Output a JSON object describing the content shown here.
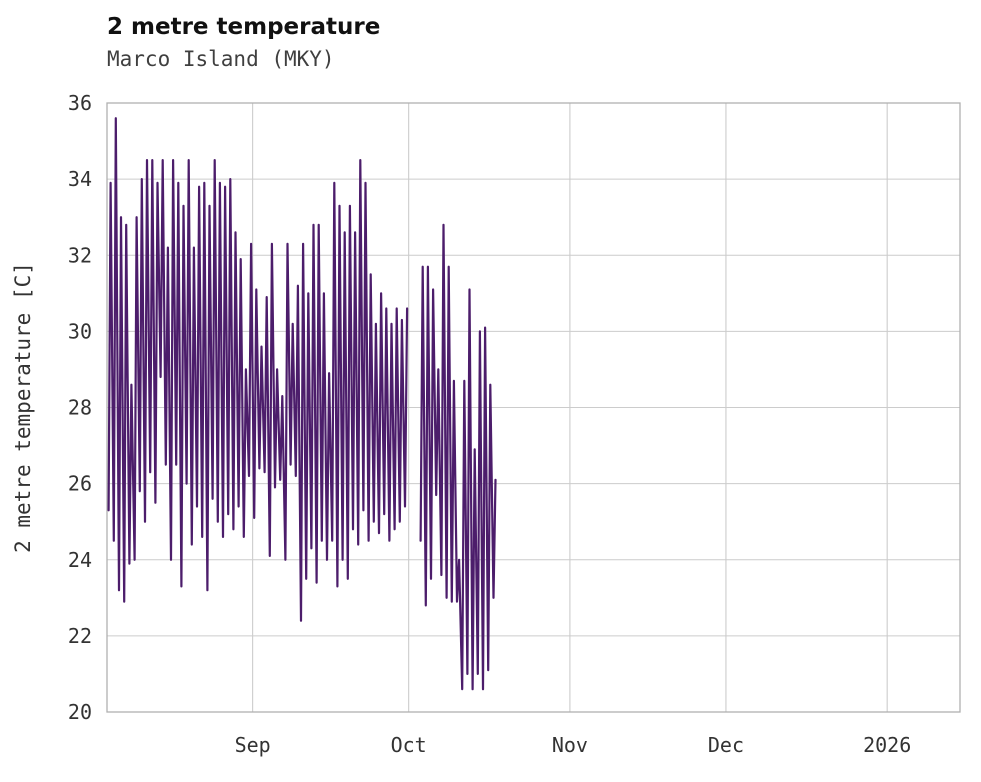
{
  "header": {
    "title": "2 metre temperature",
    "subtitle": "Marco Island (MKY)"
  },
  "chart_data": {
    "type": "line",
    "title": "2 metre temperature",
    "subtitle": "Marco Island (MKY)",
    "xlabel": "",
    "ylabel": "2 metre temperature [C]",
    "ylim": [
      20,
      36
    ],
    "yticks": [
      20,
      22,
      24,
      26,
      28,
      30,
      32,
      34,
      36
    ],
    "x_range_days": [
      0,
      164
    ],
    "x_epoch_note": "day 0 = approx Aug 4 2025 at left plot edge",
    "xticks": [
      {
        "day": 28,
        "label": "Sep"
      },
      {
        "day": 58,
        "label": "Oct"
      },
      {
        "day": 89,
        "label": "Nov"
      },
      {
        "day": 119,
        "label": "Dec"
      },
      {
        "day": 150,
        "label": "2026"
      }
    ],
    "grid": true,
    "legend": "none",
    "line_color": "#4c1d6b",
    "grid_color": "#cccccc",
    "frame_color": "#b0b0b0",
    "series": [
      {
        "name": "2 metre temperature",
        "sampling_note": "diurnal oscillation; one min and one max estimated per day",
        "segments": [
          {
            "start_day": 0,
            "max": [
              33.9,
              35.6,
              33.0,
              32.8,
              28.6,
              33.0,
              34.0,
              34.5,
              34.5,
              33.9,
              34.5,
              32.2,
              34.5,
              33.9,
              33.3,
              34.5,
              32.2,
              33.8,
              33.9,
              33.3,
              34.5,
              33.9,
              33.8,
              34.0,
              32.6,
              31.9,
              29.0,
              32.3,
              31.1,
              29.6,
              30.9,
              32.3,
              29.0,
              28.3,
              32.3,
              30.2,
              31.2,
              32.3,
              31.0,
              32.8,
              32.8,
              31.0,
              28.9,
              33.9,
              33.3,
              32.6,
              33.3,
              32.6,
              34.5,
              33.9,
              31.5,
              30.2,
              31.0,
              30.6,
              30.2,
              30.6,
              30.3,
              30.6
            ],
            "min": [
              25.3,
              24.5,
              23.2,
              22.9,
              23.9,
              24.0,
              25.8,
              25.0,
              26.3,
              25.5,
              28.8,
              26.5,
              24.0,
              26.5,
              23.3,
              26.0,
              24.4,
              25.4,
              24.6,
              23.2,
              25.6,
              25.0,
              24.6,
              25.2,
              24.8,
              25.4,
              24.6,
              26.2,
              25.1,
              26.4,
              26.3,
              24.1,
              25.9,
              26.1,
              24.0,
              26.5,
              26.2,
              22.4,
              23.5,
              24.3,
              23.4,
              24.5,
              24.0,
              24.5,
              23.3,
              24.0,
              23.5,
              24.8,
              24.4,
              25.3,
              24.5,
              25.0,
              24.7,
              25.2,
              24.5,
              24.8,
              25.0,
              25.4
            ]
          },
          {
            "start_day": 60,
            "max": [
              31.7,
              31.7,
              31.1,
              29.0,
              32.8,
              31.7,
              28.7,
              24.0,
              28.7,
              31.1,
              26.9,
              30.0,
              30.1,
              28.6,
              26.1
            ],
            "min": [
              24.5,
              22.8,
              23.5,
              25.7,
              23.6,
              23.0,
              22.9,
              22.9,
              20.6,
              21.0,
              20.6,
              21.0,
              20.6,
              21.1,
              23.0
            ]
          }
        ]
      }
    ]
  }
}
